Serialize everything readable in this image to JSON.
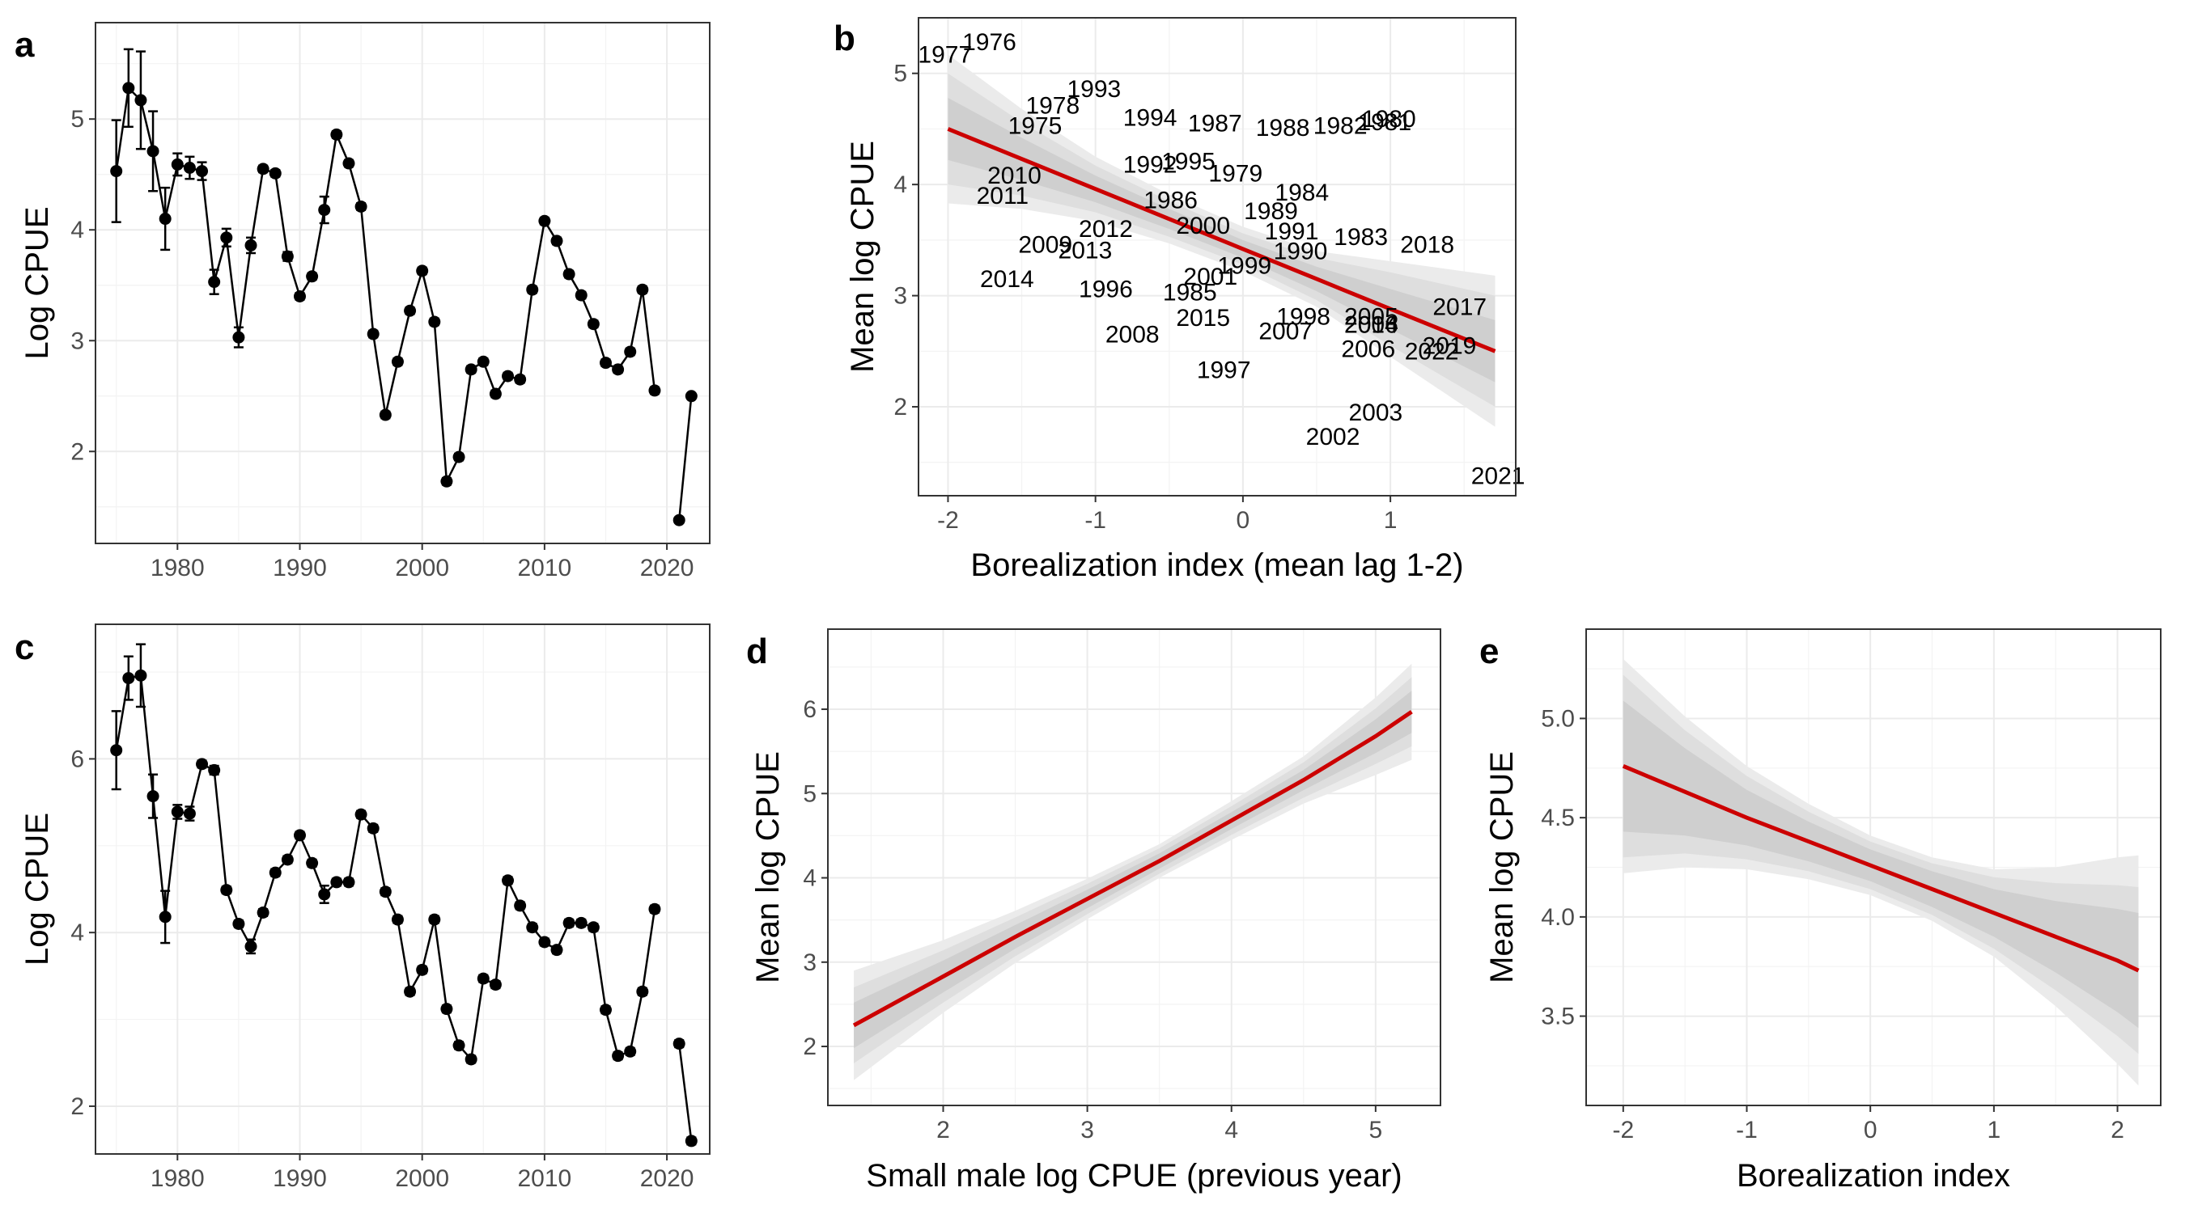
{
  "chart_data": [
    {
      "tag": "a",
      "type": "line",
      "ylabel": "Log CPUE",
      "xlabel": "",
      "xlim": [
        1973.3,
        2023.5
      ],
      "ylim": [
        1.17,
        5.87
      ],
      "x_ticks": [
        1980,
        1990,
        2000,
        2010,
        2020
      ],
      "y_ticks": [
        2,
        3,
        4,
        5
      ],
      "error_bars": true,
      "segments": [
        {
          "x": [
            1975,
            1976,
            1977,
            1978,
            1979,
            1980,
            1981,
            1982,
            1983,
            1984,
            1985,
            1986,
            1987,
            1988,
            1989,
            1990,
            1991,
            1992,
            1993,
            1994,
            1995,
            1996,
            1997,
            1998,
            1999,
            2000,
            2001,
            2002,
            2003,
            2004,
            2005,
            2006,
            2007,
            2008,
            2009,
            2010,
            2011,
            2012,
            2013,
            2014,
            2015,
            2016,
            2017,
            2018,
            2019
          ],
          "y": [
            4.53,
            5.28,
            5.17,
            4.71,
            4.1,
            4.59,
            4.56,
            4.53,
            3.53,
            3.93,
            3.03,
            3.86,
            4.55,
            4.51,
            3.76,
            3.4,
            3.58,
            4.18,
            4.86,
            4.6,
            4.21,
            3.06,
            2.33,
            2.81,
            3.27,
            3.63,
            3.17,
            1.73,
            1.95,
            2.74,
            2.81,
            2.52,
            2.68,
            2.65,
            3.46,
            4.08,
            3.9,
            3.6,
            3.41,
            3.15,
            2.8,
            2.74,
            2.9,
            3.46,
            2.55
          ],
          "lo": [
            4.07,
            4.93,
            4.73,
            4.35,
            3.82,
            4.49,
            4.46,
            4.45,
            3.42,
            3.85,
            2.94,
            3.79,
            4.52,
            4.48,
            3.72,
            3.37,
            3.55,
            4.06,
            4.83,
            4.57,
            4.18,
            3.03,
            2.3,
            2.78,
            3.24,
            3.6,
            3.14,
            1.7,
            1.92,
            2.71,
            2.78,
            2.49,
            2.65,
            2.62,
            3.43,
            4.05,
            3.87,
            3.57,
            3.38,
            3.12,
            2.77,
            2.71,
            2.87,
            3.43,
            2.52
          ],
          "hi": [
            4.99,
            5.63,
            5.61,
            5.07,
            4.38,
            4.69,
            4.66,
            4.61,
            3.64,
            4.01,
            3.12,
            3.93,
            4.58,
            4.54,
            3.8,
            3.43,
            3.61,
            4.3,
            4.89,
            4.63,
            4.24,
            3.09,
            2.36,
            2.84,
            3.3,
            3.66,
            3.2,
            1.76,
            1.98,
            2.77,
            2.84,
            2.55,
            2.71,
            2.68,
            3.49,
            4.11,
            3.93,
            3.63,
            3.44,
            3.18,
            2.83,
            2.77,
            2.93,
            3.49,
            2.58
          ]
        },
        {
          "x": [
            2021,
            2022
          ],
          "y": [
            1.38,
            2.5
          ],
          "lo": [
            1.36,
            2.48
          ],
          "hi": [
            1.4,
            2.52
          ]
        }
      ]
    },
    {
      "tag": "b",
      "type": "scatter",
      "xlabel": "Borealization index (mean lag 1-2)",
      "ylabel": "Mean log CPUE",
      "xlim": [
        -2.2,
        1.85
      ],
      "ylim": [
        1.2,
        5.5
      ],
      "x_ticks": [
        -2,
        -1,
        0,
        1
      ],
      "y_ticks": [
        2,
        3,
        4,
        5
      ],
      "point_labels": [
        {
          "label": "1977",
          "x": -2.02,
          "y": 5.17
        },
        {
          "label": "1976",
          "x": -1.72,
          "y": 5.28
        },
        {
          "label": "1993",
          "x": -1.01,
          "y": 4.86
        },
        {
          "label": "1978",
          "x": -1.29,
          "y": 4.71
        },
        {
          "label": "1975",
          "x": -1.41,
          "y": 4.53
        },
        {
          "label": "1994",
          "x": -0.63,
          "y": 4.6
        },
        {
          "label": "1987",
          "x": -0.19,
          "y": 4.55
        },
        {
          "label": "1988",
          "x": 0.27,
          "y": 4.51
        },
        {
          "label": "1982",
          "x": 0.66,
          "y": 4.53
        },
        {
          "label": "1980",
          "x": 0.99,
          "y": 4.59
        },
        {
          "label": "1981",
          "x": 0.96,
          "y": 4.56
        },
        {
          "label": "1992",
          "x": -0.63,
          "y": 4.18
        },
        {
          "label": "1995",
          "x": -0.37,
          "y": 4.21
        },
        {
          "label": "1979",
          "x": -0.05,
          "y": 4.1
        },
        {
          "label": "2010",
          "x": -1.55,
          "y": 4.08
        },
        {
          "label": "2011",
          "x": -1.63,
          "y": 3.9
        },
        {
          "label": "1984",
          "x": 0.4,
          "y": 3.93
        },
        {
          "label": "1986",
          "x": -0.49,
          "y": 3.86
        },
        {
          "label": "1989",
          "x": 0.19,
          "y": 3.76
        },
        {
          "label": "2000",
          "x": -0.27,
          "y": 3.63
        },
        {
          "label": "2012",
          "x": -0.93,
          "y": 3.6
        },
        {
          "label": "1991",
          "x": 0.33,
          "y": 3.58
        },
        {
          "label": "1983",
          "x": 0.8,
          "y": 3.53
        },
        {
          "label": "2018",
          "x": 1.25,
          "y": 3.46
        },
        {
          "label": "2009",
          "x": -1.34,
          "y": 3.46
        },
        {
          "label": "2013",
          "x": -1.07,
          "y": 3.41
        },
        {
          "label": "1990",
          "x": 0.39,
          "y": 3.4
        },
        {
          "label": "1999",
          "x": 0.01,
          "y": 3.27
        },
        {
          "label": "2001",
          "x": -0.22,
          "y": 3.17
        },
        {
          "label": "2014",
          "x": -1.6,
          "y": 3.15
        },
        {
          "label": "1996",
          "x": -0.93,
          "y": 3.06
        },
        {
          "label": "1985",
          "x": -0.36,
          "y": 3.03
        },
        {
          "label": "2017",
          "x": 1.47,
          "y": 2.9
        },
        {
          "label": "1998",
          "x": 0.41,
          "y": 2.81
        },
        {
          "label": "2015",
          "x": -0.27,
          "y": 2.8
        },
        {
          "label": "2005",
          "x": 0.87,
          "y": 2.81
        },
        {
          "label": "2004",
          "x": 0.87,
          "y": 2.74
        },
        {
          "label": "2016",
          "x": 0.87,
          "y": 2.74
        },
        {
          "label": "2007",
          "x": 0.29,
          "y": 2.68
        },
        {
          "label": "2008",
          "x": -0.75,
          "y": 2.65
        },
        {
          "label": "2019",
          "x": 1.4,
          "y": 2.55
        },
        {
          "label": "2006",
          "x": 0.85,
          "y": 2.52
        },
        {
          "label": "2022",
          "x": 1.28,
          "y": 2.5
        },
        {
          "label": "1997",
          "x": -0.13,
          "y": 2.33
        },
        {
          "label": "2003",
          "x": 0.9,
          "y": 1.95
        },
        {
          "label": "2002",
          "x": 0.61,
          "y": 1.73
        },
        {
          "label": "2021",
          "x": 1.73,
          "y": 1.38
        }
      ],
      "fit": {
        "x": [
          -2.0,
          -1.5,
          -1.0,
          -0.5,
          0.0,
          0.5,
          1.0,
          1.71
        ],
        "y": [
          4.5,
          4.23,
          3.96,
          3.69,
          3.42,
          3.15,
          2.88,
          2.5
        ],
        "ci_inner_lo": [
          4.22,
          4.04,
          3.84,
          3.6,
          3.34,
          3.04,
          2.7,
          2.22
        ],
        "ci_inner_hi": [
          4.78,
          4.42,
          4.08,
          3.78,
          3.5,
          3.26,
          3.06,
          2.78
        ],
        "ci_mid_lo": [
          4.0,
          3.9,
          3.75,
          3.53,
          3.28,
          2.96,
          2.55,
          2.0
        ],
        "ci_mid_hi": [
          5.0,
          4.56,
          4.17,
          3.85,
          3.56,
          3.34,
          3.21,
          3.0
        ],
        "ci_outer_lo": [
          3.83,
          3.78,
          3.67,
          3.47,
          3.22,
          2.9,
          2.45,
          1.82
        ],
        "ci_outer_hi": [
          5.17,
          4.68,
          4.25,
          3.91,
          3.62,
          3.4,
          3.31,
          3.18
        ]
      }
    },
    {
      "tag": "c",
      "type": "line",
      "ylabel": "Log CPUE",
      "xlabel": "",
      "xlim": [
        1973.3,
        2023.5
      ],
      "ylim": [
        1.45,
        7.55
      ],
      "x_ticks": [
        1980,
        1990,
        2000,
        2010,
        2020
      ],
      "y_ticks": [
        2,
        4,
        6
      ],
      "error_bars": true,
      "segments": [
        {
          "x": [
            1975,
            1976,
            1977,
            1978,
            1979,
            1980,
            1981,
            1982,
            1983,
            1984,
            1985,
            1986,
            1987,
            1988,
            1989,
            1990,
            1991,
            1992,
            1993,
            1994,
            1995,
            1996,
            1997,
            1998,
            1999,
            2000,
            2001,
            2002,
            2003,
            2004,
            2005,
            2006,
            2007,
            2008,
            2009,
            2010,
            2011,
            2012,
            2013,
            2014,
            2015,
            2016,
            2017,
            2018,
            2019
          ],
          "y": [
            6.1,
            6.93,
            6.96,
            5.57,
            4.18,
            5.39,
            5.37,
            5.94,
            5.87,
            4.49,
            4.1,
            3.84,
            4.23,
            4.69,
            4.84,
            5.12,
            4.8,
            4.44,
            4.58,
            4.58,
            5.36,
            5.2,
            4.47,
            4.15,
            3.32,
            3.57,
            4.15,
            3.12,
            2.7,
            2.54,
            3.47,
            3.4,
            4.6,
            4.31,
            4.06,
            3.89,
            3.8,
            4.11,
            4.11,
            4.06,
            3.11,
            2.58,
            2.63,
            3.32,
            4.27
          ],
          "lo": [
            5.65,
            6.68,
            6.6,
            5.32,
            3.88,
            5.31,
            5.29,
            5.9,
            5.82,
            4.45,
            4.06,
            3.76,
            4.19,
            4.65,
            4.8,
            5.08,
            4.76,
            4.34,
            4.54,
            4.54,
            5.32,
            5.16,
            4.43,
            4.11,
            3.28,
            3.53,
            4.11,
            3.08,
            2.66,
            2.5,
            3.43,
            3.36,
            4.56,
            4.27,
            4.02,
            3.85,
            3.76,
            4.07,
            4.07,
            4.02,
            3.07,
            2.54,
            2.59,
            3.28,
            4.23
          ],
          "hi": [
            6.55,
            7.18,
            7.32,
            5.82,
            4.48,
            5.47,
            5.45,
            5.98,
            5.92,
            4.53,
            4.14,
            3.92,
            4.27,
            4.73,
            4.88,
            5.16,
            4.84,
            4.54,
            4.62,
            4.62,
            5.4,
            5.24,
            4.51,
            4.19,
            3.36,
            3.61,
            4.19,
            3.16,
            2.74,
            2.58,
            3.51,
            3.44,
            4.64,
            4.35,
            4.1,
            3.93,
            3.84,
            4.15,
            4.15,
            4.1,
            3.15,
            2.62,
            2.67,
            3.36,
            4.31
          ]
        },
        {
          "x": [
            2021,
            2022
          ],
          "y": [
            2.72,
            1.6
          ],
          "lo": [
            2.68,
            1.56
          ],
          "hi": [
            2.76,
            1.64
          ]
        }
      ]
    },
    {
      "tag": "d",
      "type": "line",
      "xlabel": "Small male log CPUE (previous year)",
      "ylabel": "Mean log CPUE",
      "xlim": [
        1.2,
        5.45
      ],
      "ylim": [
        1.3,
        6.95
      ],
      "x_ticks": [
        2,
        3,
        4,
        5
      ],
      "y_ticks": [
        2,
        3,
        4,
        5,
        6
      ],
      "fit": {
        "x": [
          1.38,
          2.0,
          2.5,
          3.0,
          3.5,
          4.0,
          4.5,
          5.0,
          5.25
        ],
        "y": [
          2.25,
          2.83,
          3.3,
          3.75,
          4.2,
          4.68,
          5.16,
          5.68,
          5.97
        ],
        "ci_inner_lo": [
          1.98,
          2.64,
          3.16,
          3.64,
          4.11,
          4.58,
          5.04,
          5.48,
          5.72
        ],
        "ci_inner_hi": [
          2.52,
          3.02,
          3.44,
          3.86,
          4.29,
          4.78,
          5.28,
          5.88,
          6.22
        ],
        "ci_mid_lo": [
          1.8,
          2.52,
          3.07,
          3.57,
          4.05,
          4.51,
          4.95,
          5.35,
          5.56
        ],
        "ci_mid_hi": [
          2.7,
          3.14,
          3.53,
          3.93,
          4.35,
          4.85,
          5.37,
          6.01,
          6.38
        ],
        "ci_outer_lo": [
          1.6,
          2.4,
          2.99,
          3.51,
          4.0,
          4.45,
          4.88,
          5.22,
          5.4
        ],
        "ci_outer_hi": [
          2.9,
          3.26,
          3.61,
          3.99,
          4.4,
          4.91,
          5.44,
          6.14,
          6.54
        ]
      }
    },
    {
      "tag": "e",
      "type": "line",
      "xlabel": "Borealization index",
      "ylabel": "Mean log CPUE",
      "xlim": [
        -2.3,
        2.35
      ],
      "ylim": [
        3.05,
        5.45
      ],
      "x_ticks": [
        -2,
        -1,
        0,
        1,
        2
      ],
      "y_ticks": [
        3.5,
        4.0,
        4.5,
        5.0
      ],
      "y_tick_labels": [
        "3.5",
        "4.0",
        "4.5",
        "5.0"
      ],
      "fit": {
        "x": [
          -2.0,
          -1.5,
          -1.0,
          -0.5,
          0.0,
          0.5,
          1.0,
          1.5,
          2.0,
          2.17
        ],
        "y": [
          4.76,
          4.63,
          4.5,
          4.38,
          4.26,
          4.14,
          4.02,
          3.9,
          3.78,
          3.73
        ],
        "ci_inner_lo": [
          4.43,
          4.41,
          4.36,
          4.28,
          4.18,
          4.05,
          3.9,
          3.72,
          3.52,
          3.44
        ],
        "ci_inner_hi": [
          5.09,
          4.85,
          4.64,
          4.48,
          4.34,
          4.23,
          4.14,
          4.08,
          4.04,
          4.02
        ],
        "ci_mid_lo": [
          4.3,
          4.32,
          4.29,
          4.23,
          4.14,
          4.01,
          3.84,
          3.63,
          3.4,
          3.31
        ],
        "ci_mid_hi": [
          5.22,
          4.94,
          4.71,
          4.53,
          4.38,
          4.27,
          4.2,
          4.17,
          4.16,
          4.15
        ],
        "ci_outer_lo": [
          4.22,
          4.25,
          4.24,
          4.19,
          4.11,
          3.98,
          3.8,
          3.55,
          3.26,
          3.15
        ],
        "ci_outer_hi": [
          5.3,
          5.01,
          4.76,
          4.57,
          4.41,
          4.3,
          4.24,
          4.25,
          4.3,
          4.31
        ]
      }
    }
  ],
  "colors": {
    "fit_line": "#cc0000",
    "ci_outer": "#ebebeb",
    "ci_mid": "#dedede",
    "ci_inner": "#cfcfcf",
    "points": "#000000",
    "grid": "#ebebeb"
  }
}
